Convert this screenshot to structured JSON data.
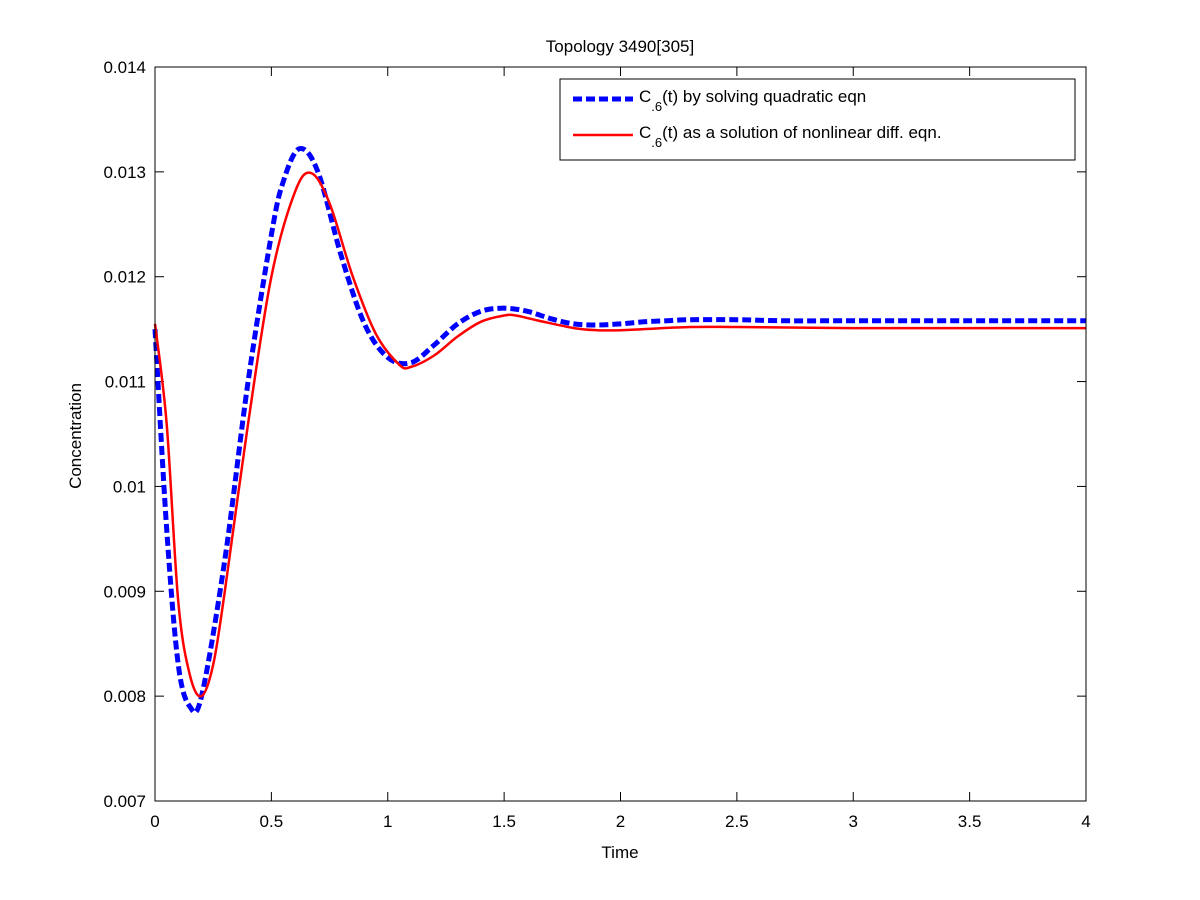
{
  "chart_data": {
    "type": "line",
    "title": "Topology 3490[305]",
    "xlabel": "Time",
    "ylabel": "Concentration",
    "xlim": [
      0,
      4
    ],
    "ylim": [
      0.007,
      0.014
    ],
    "xticks": [
      0,
      0.5,
      1,
      1.5,
      2,
      2.5,
      3,
      3.5,
      4
    ],
    "xtick_labels": [
      "0",
      "0.5",
      "1",
      "1.5",
      "2",
      "2.5",
      "3",
      "3.5",
      "4"
    ],
    "yticks": [
      0.007,
      0.008,
      0.009,
      0.01,
      0.011,
      0.012,
      0.013,
      0.014
    ],
    "ytick_labels": [
      "0.007",
      "0.008",
      "0.009",
      "0.01",
      "0.011",
      "0.012",
      "0.013",
      "0.014"
    ],
    "grid": false,
    "legend_position": "top-right",
    "series": [
      {
        "name": "C.6(t) by solving quadratic eqn",
        "legend_main": "C",
        "legend_sub": ".6",
        "legend_rest": "(t) by solving quadratic eqn",
        "color": "#0000ff",
        "style": "dashed",
        "x": [
          0,
          0.05,
          0.1,
          0.15,
          0.2,
          0.3,
          0.4,
          0.5,
          0.55,
          0.62,
          0.7,
          0.8,
          0.9,
          1.0,
          1.1,
          1.2,
          1.3,
          1.4,
          1.5,
          1.6,
          1.7,
          1.8,
          1.9,
          2.0,
          2.1,
          2.2,
          2.3,
          2.5,
          2.7,
          3.0,
          3.5,
          4.0
        ],
        "y": [
          0.0115,
          0.0096,
          0.0083,
          0.0079,
          0.008,
          0.0093,
          0.011,
          0.0124,
          0.0129,
          0.01322,
          0.013,
          0.0122,
          0.01155,
          0.01123,
          0.01118,
          0.01135,
          0.01155,
          0.01167,
          0.0117,
          0.01167,
          0.0116,
          0.01155,
          0.01154,
          0.01155,
          0.01157,
          0.01158,
          0.01159,
          0.01159,
          0.01158,
          0.01158,
          0.01158,
          0.01158
        ]
      },
      {
        "name": "C.6(t) as a solution of nonlinear diff. eqn.",
        "legend_main": "C",
        "legend_sub": ".6",
        "legend_rest": "(t) as a solution of nonlinear diff. eqn.",
        "color": "#ff0000",
        "style": "solid",
        "x": [
          0,
          0.05,
          0.1,
          0.15,
          0.2,
          0.25,
          0.3,
          0.4,
          0.5,
          0.6,
          0.67,
          0.75,
          0.85,
          0.95,
          1.05,
          1.1,
          1.2,
          1.3,
          1.4,
          1.5,
          1.55,
          1.65,
          1.8,
          1.9,
          2.0,
          2.1,
          2.3,
          2.5,
          3.0,
          3.5,
          4.0
        ],
        "y": [
          0.01155,
          0.0106,
          0.0089,
          0.0082,
          0.008,
          0.0083,
          0.009,
          0.0106,
          0.012,
          0.0128,
          0.01299,
          0.0127,
          0.012,
          0.01145,
          0.01116,
          0.01114,
          0.01125,
          0.01143,
          0.01157,
          0.01163,
          0.01163,
          0.01158,
          0.01151,
          0.01149,
          0.01149,
          0.0115,
          0.01152,
          0.01152,
          0.01151,
          0.01151,
          0.01151
        ]
      }
    ]
  }
}
